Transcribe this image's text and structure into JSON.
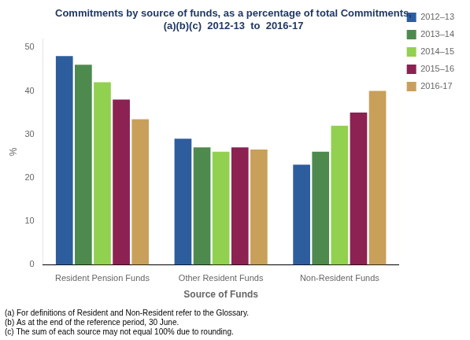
{
  "chart_data": {
    "type": "bar",
    "title": "Commitments by source of funds, as a percentage of total Commitments,\n(a)(b)(c)  2012-13  to  2016-17",
    "title_color": "#1F3864",
    "x_label": "Source of Funds",
    "y_label": "%",
    "categories": [
      "Resident Pension Funds",
      "Other Resident Funds",
      "Non-Resident Funds"
    ],
    "series": [
      {
        "name": "2012–13",
        "color": "#2E5D9E",
        "values": [
          48,
          29,
          23
        ]
      },
      {
        "name": "2013–14",
        "color": "#4E8A4E",
        "values": [
          46,
          27,
          26
        ]
      },
      {
        "name": "2014–15",
        "color": "#92D050",
        "values": [
          42,
          26,
          32
        ]
      },
      {
        "name": "2015–16",
        "color": "#8B2252",
        "values": [
          38,
          27,
          35
        ]
      },
      {
        "name": "2016-17",
        "color": "#C8A05A",
        "values": [
          33.5,
          26.5,
          40
        ]
      }
    ],
    "ylim": [
      0,
      52
    ],
    "yticks": [
      0,
      10,
      20,
      30,
      40,
      50
    ],
    "grid": false,
    "legend": "right",
    "annotations": [
      "(a) For definitions of Resident and Non-Resident refer to the Glossary.",
      "(b) As at the end of the reference period, 30 June.",
      "(c) The sum of each source may not equal 100% due to rounding."
    ]
  }
}
